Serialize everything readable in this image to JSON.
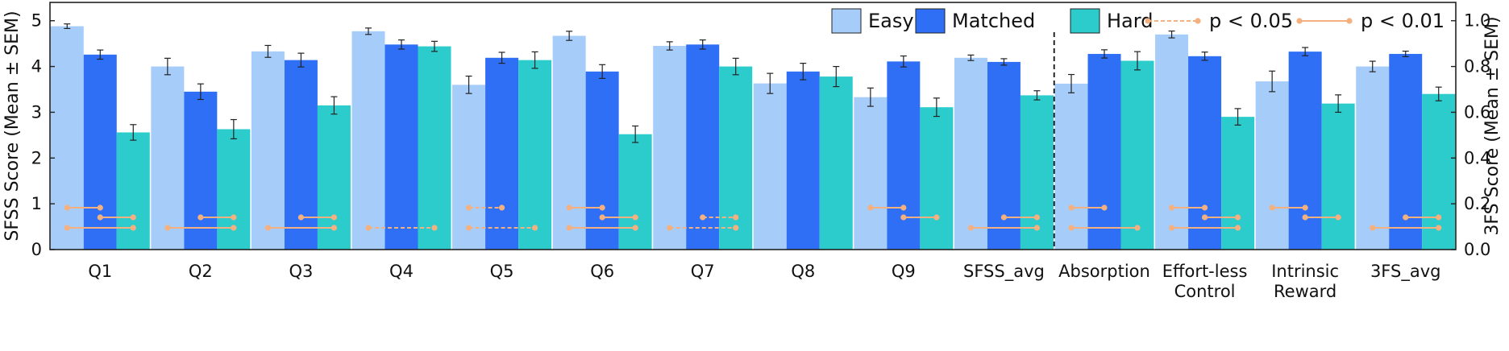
{
  "chart_data": {
    "type": "bar",
    "categories": [
      "Q1",
      "Q2",
      "Q3",
      "Q4",
      "Q5",
      "Q6",
      "Q7",
      "Q8",
      "Q9",
      "SFSS_avg",
      "Absorption",
      "Effort-less Control",
      "Intrinsic Reward",
      "3FS_avg"
    ],
    "category_lines": [
      [
        "Q1"
      ],
      [
        "Q2"
      ],
      [
        "Q3"
      ],
      [
        "Q4"
      ],
      [
        "Q5"
      ],
      [
        "Q6"
      ],
      [
        "Q7"
      ],
      [
        "Q8"
      ],
      [
        "Q9"
      ],
      [
        "SFSS_avg"
      ],
      [
        "Absorption"
      ],
      [
        "Effort-less",
        "Control"
      ],
      [
        "Intrinsic",
        "Reward"
      ],
      [
        "3FS_avg"
      ]
    ],
    "series": [
      {
        "name": "Easy",
        "color": "#a6cdfa",
        "values": [
          4.88,
          4.0,
          4.33,
          4.77,
          3.6,
          4.67,
          4.45,
          3.63,
          3.33,
          4.19,
          0.725,
          0.94,
          0.735,
          0.8
        ],
        "sem": [
          0.05,
          0.18,
          0.13,
          0.07,
          0.19,
          0.1,
          0.09,
          0.22,
          0.2,
          0.06,
          0.04,
          0.015,
          0.045,
          0.023
        ]
      },
      {
        "name": "Matched",
        "color": "#2f6ff5",
        "values": [
          4.26,
          3.45,
          4.14,
          4.48,
          4.19,
          3.89,
          4.48,
          3.89,
          4.11,
          4.1,
          0.855,
          0.845,
          0.865,
          0.855
        ],
        "sem": [
          0.1,
          0.17,
          0.15,
          0.1,
          0.12,
          0.15,
          0.1,
          0.18,
          0.12,
          0.07,
          0.018,
          0.018,
          0.018,
          0.012
        ]
      },
      {
        "name": "Hard",
        "color": "#2dcccc",
        "values": [
          2.56,
          2.63,
          3.15,
          4.44,
          4.14,
          2.52,
          4.0,
          3.78,
          3.11,
          3.37,
          0.825,
          0.58,
          0.638,
          0.68
        ],
        "sem": [
          0.17,
          0.21,
          0.19,
          0.11,
          0.18,
          0.18,
          0.18,
          0.22,
          0.2,
          0.1,
          0.04,
          0.036,
          0.038,
          0.03
        ]
      }
    ],
    "left_axis": {
      "label": "SFSS Score (Mean ± SEM)",
      "range": [
        0,
        5.4
      ],
      "ticks": [
        "0",
        "1",
        "2",
        "3",
        "4",
        "5"
      ]
    },
    "right_axis": {
      "label": "3FS Score (Mean ± SEM)",
      "range": [
        0,
        1.08
      ],
      "ticks": [
        "0.0",
        "0.2",
        "0.4",
        "0.6",
        "0.8",
        "1.0"
      ]
    },
    "right_axis_categories": [
      "Absorption",
      "Effort-less Control",
      "Intrinsic Reward",
      "3FS_avg"
    ],
    "divider": "dashed vertical line between SFSS_avg and Absorption",
    "significance_legend": [
      {
        "label": "p < 0.05",
        "style": "dashed"
      },
      {
        "label": "p < 0.01",
        "style": "solid"
      }
    ],
    "significance": [
      [
        {
          "pair": "Easy-Matched",
          "style": "solid"
        },
        {
          "pair": "Matched-Hard",
          "style": "solid"
        },
        {
          "pair": "Easy-Hard",
          "style": "solid"
        }
      ],
      [
        {
          "pair": "Matched-Hard",
          "style": "solid"
        },
        {
          "pair": "Easy-Hard",
          "style": "solid"
        }
      ],
      [
        {
          "pair": "Matched-Hard",
          "style": "solid"
        },
        {
          "pair": "Easy-Hard",
          "style": "solid"
        }
      ],
      [
        {
          "pair": "Easy-Hard",
          "style": "dashed"
        }
      ],
      [
        {
          "pair": "Easy-Matched",
          "style": "dashed"
        },
        {
          "pair": "Easy-Hard",
          "style": "dashed"
        }
      ],
      [
        {
          "pair": "Easy-Matched",
          "style": "solid"
        },
        {
          "pair": "Matched-Hard",
          "style": "solid"
        },
        {
          "pair": "Easy-Hard",
          "style": "solid"
        }
      ],
      [
        {
          "pair": "Matched-Hard",
          "style": "dashed"
        },
        {
          "pair": "Easy-Hard",
          "style": "dashed"
        }
      ],
      [],
      [
        {
          "pair": "Easy-Matched",
          "style": "solid"
        },
        {
          "pair": "Matched-Hard",
          "style": "solid"
        }
      ],
      [
        {
          "pair": "Matched-Hard",
          "style": "solid"
        },
        {
          "pair": "Easy-Hard",
          "style": "solid"
        }
      ],
      [
        {
          "pair": "Easy-Matched",
          "style": "solid"
        },
        {
          "pair": "Easy-Hard",
          "style": "solid"
        }
      ],
      [
        {
          "pair": "Easy-Matched",
          "style": "solid"
        },
        {
          "pair": "Matched-Hard",
          "style": "solid"
        },
        {
          "pair": "Easy-Hard",
          "style": "solid"
        }
      ],
      [
        {
          "pair": "Easy-Matched",
          "style": "solid"
        },
        {
          "pair": "Matched-Hard",
          "style": "solid"
        }
      ],
      [
        {
          "pair": "Matched-Hard",
          "style": "solid"
        },
        {
          "pair": "Easy-Hard",
          "style": "solid"
        }
      ]
    ],
    "significance_color": "#f5b080",
    "legend_position": "top-right",
    "grid": false
  }
}
